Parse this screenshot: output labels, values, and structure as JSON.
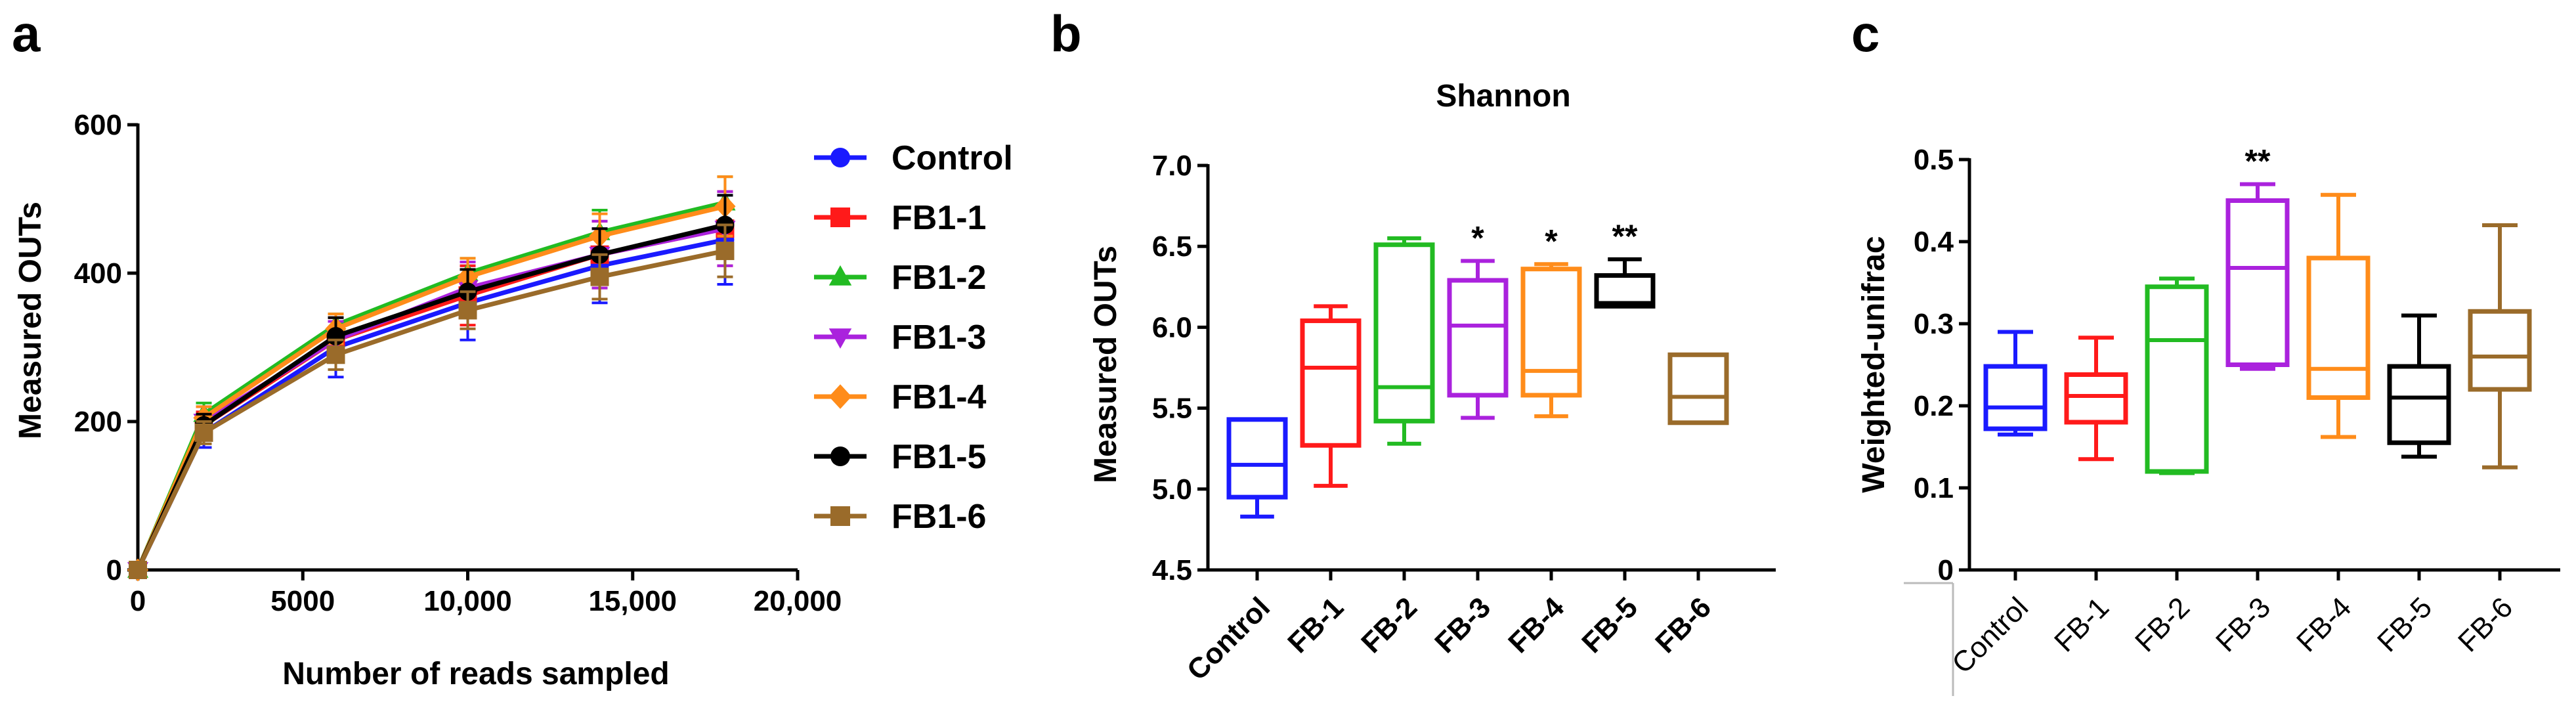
{
  "panel_labels": [
    "a",
    "b",
    "c"
  ],
  "chart_data": [
    {
      "type": "line",
      "panel": "a",
      "title": "",
      "xlabel": "Number of reads sampled",
      "ylabel": "Measured OUTs",
      "xlim": [
        0,
        20000
      ],
      "ylim": [
        0,
        600
      ],
      "xticks": [
        0,
        5000,
        10000,
        15000,
        20000
      ],
      "xtick_labels": [
        "0",
        "5000",
        "10,000",
        "15,000",
        "20,000"
      ],
      "yticks": [
        0,
        200,
        400,
        600
      ],
      "ytick_labels": [
        "0",
        "200",
        "400",
        "600"
      ],
      "x": [
        0,
        2000,
        6000,
        10000,
        14000,
        17800
      ],
      "series": [
        {
          "name": "Control",
          "color": "#1a1aff",
          "marker": "circle",
          "values": [
            0,
            185,
            300,
            360,
            410,
            445
          ],
          "err": [
            0,
            20,
            40,
            50,
            50,
            60
          ]
        },
        {
          "name": "FB1-1",
          "color": "#ff1a1a",
          "marker": "square",
          "values": [
            0,
            195,
            310,
            370,
            425,
            460
          ],
          "err": [
            0,
            18,
            30,
            40,
            45,
            50
          ]
        },
        {
          "name": "FB1-2",
          "color": "#22bb22",
          "marker": "triangle-up",
          "values": [
            0,
            210,
            330,
            400,
            455,
            495
          ],
          "err": [
            0,
            15,
            15,
            20,
            30,
            35
          ]
        },
        {
          "name": "FB1-3",
          "color": "#aa22dd",
          "marker": "triangle-down",
          "values": [
            0,
            200,
            310,
            380,
            425,
            460
          ],
          "err": [
            0,
            20,
            25,
            35,
            45,
            50
          ]
        },
        {
          "name": "FB1-4",
          "color": "#ff8c1a",
          "marker": "diamond",
          "values": [
            0,
            205,
            325,
            395,
            450,
            490
          ],
          "err": [
            0,
            15,
            20,
            25,
            30,
            40
          ]
        },
        {
          "name": "FB1-5",
          "color": "#000000",
          "marker": "circle",
          "values": [
            0,
            195,
            315,
            375,
            425,
            465
          ],
          "err": [
            0,
            15,
            25,
            30,
            35,
            40
          ]
        },
        {
          "name": "FB1-6",
          "color": "#9a6b2a",
          "marker": "square",
          "values": [
            0,
            185,
            290,
            350,
            395,
            430
          ],
          "err": [
            0,
            15,
            20,
            25,
            30,
            35
          ]
        }
      ]
    },
    {
      "type": "box",
      "panel": "b",
      "title": "Shannon",
      "xlabel": "",
      "ylabel": "Measured OUTs",
      "ylim": [
        4.5,
        7.0
      ],
      "yticks": [
        4.5,
        5.0,
        5.5,
        6.0,
        6.5,
        7.0
      ],
      "ytick_labels": [
        "4.5",
        "5.0",
        "5.5",
        "6.0",
        "6.5",
        "7.0"
      ],
      "categories": [
        "Control",
        "FB-1",
        "FB-2",
        "FB-3",
        "FB-4",
        "FB-5",
        "FB-6"
      ],
      "colors": [
        "#1a1aff",
        "#ff1a1a",
        "#22bb22",
        "#aa22dd",
        "#ff8c1a",
        "#000000",
        "#9a6b2a"
      ],
      "boxes": [
        {
          "min": 4.83,
          "q1": 4.95,
          "median": 5.15,
          "q3": 5.43,
          "max": 5.43
        },
        {
          "min": 5.02,
          "q1": 5.27,
          "median": 5.75,
          "q3": 6.04,
          "max": 6.13
        },
        {
          "min": 5.28,
          "q1": 5.42,
          "median": 5.63,
          "q3": 6.51,
          "max": 6.55
        },
        {
          "min": 5.44,
          "q1": 5.58,
          "median": 6.01,
          "q3": 6.29,
          "max": 6.41
        },
        {
          "min": 5.45,
          "q1": 5.58,
          "median": 5.73,
          "q3": 6.36,
          "max": 6.39
        },
        {
          "min": 6.13,
          "q1": 6.13,
          "median": 6.15,
          "q3": 6.32,
          "max": 6.42
        },
        {
          "min": 5.41,
          "q1": 5.41,
          "median": 5.57,
          "q3": 5.83,
          "max": 5.83
        }
      ],
      "annotations": [
        "",
        "",
        "",
        "*",
        "*",
        "**",
        ""
      ]
    },
    {
      "type": "box",
      "panel": "c",
      "title": "",
      "xlabel": "",
      "ylabel": "Weighted-unifrac",
      "ylim": [
        0,
        0.5
      ],
      "yticks": [
        0,
        0.1,
        0.2,
        0.3,
        0.4,
        0.5
      ],
      "ytick_labels": [
        "0",
        "0.1",
        "0.2",
        "0.3",
        "0.4",
        "0.5"
      ],
      "categories": [
        "Control",
        "FB-1",
        "FB-2",
        "FB-3",
        "FB-4",
        "FB-5",
        "FB-6"
      ],
      "colors": [
        "#1a1aff",
        "#ff1a1a",
        "#22bb22",
        "#aa22dd",
        "#ff8c1a",
        "#000000",
        "#9a6b2a"
      ],
      "boxes": [
        {
          "min": 0.165,
          "q1": 0.172,
          "median": 0.198,
          "q3": 0.248,
          "max": 0.29
        },
        {
          "min": 0.135,
          "q1": 0.18,
          "median": 0.212,
          "q3": 0.238,
          "max": 0.283
        },
        {
          "min": 0.118,
          "q1": 0.12,
          "median": 0.28,
          "q3": 0.345,
          "max": 0.355
        },
        {
          "min": 0.245,
          "q1": 0.25,
          "median": 0.368,
          "q3": 0.45,
          "max": 0.47
        },
        {
          "min": 0.162,
          "q1": 0.21,
          "median": 0.245,
          "q3": 0.38,
          "max": 0.457
        },
        {
          "min": 0.138,
          "q1": 0.155,
          "median": 0.21,
          "q3": 0.248,
          "max": 0.31
        },
        {
          "min": 0.125,
          "q1": 0.22,
          "median": 0.26,
          "q3": 0.315,
          "max": 0.42
        }
      ],
      "annotations": [
        "",
        "",
        "",
        "**",
        "",
        "",
        ""
      ]
    }
  ]
}
